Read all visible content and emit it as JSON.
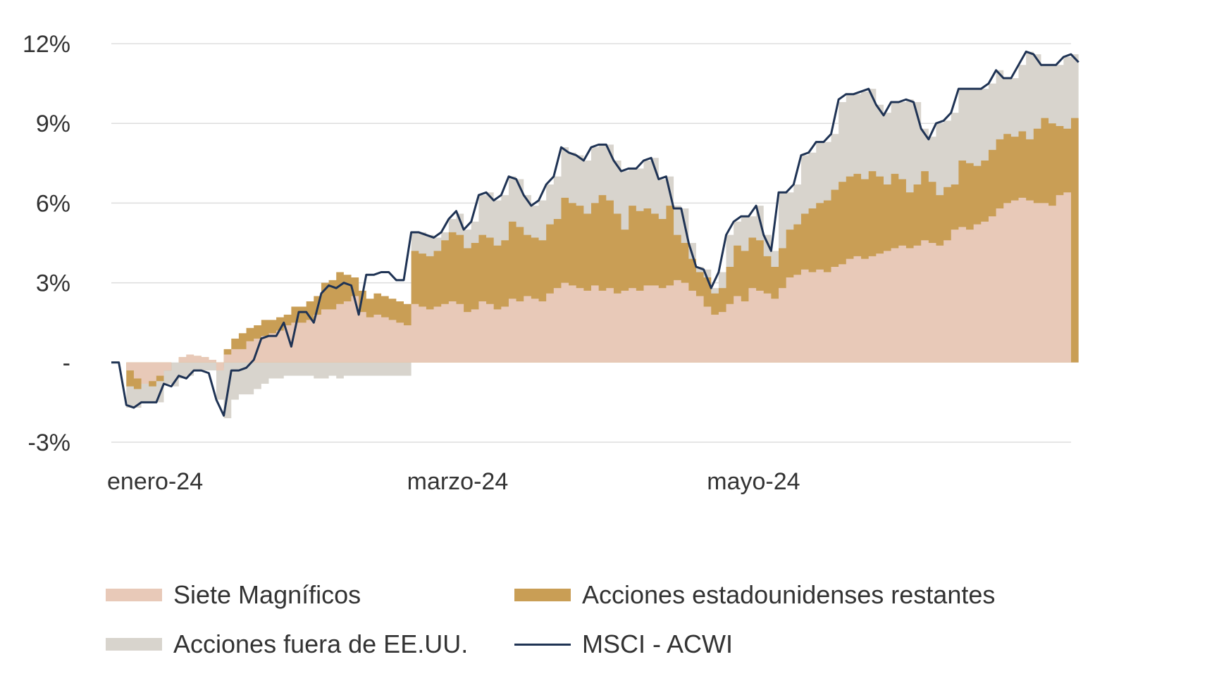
{
  "chart_data": {
    "type": "area",
    "title": "",
    "xlabel": "",
    "ylabel": "",
    "ylim": [
      -3,
      12
    ],
    "y_ticks": [
      {
        "value": 12,
        "label": "12%"
      },
      {
        "value": 9,
        "label": "9%"
      },
      {
        "value": 6,
        "label": "6%"
      },
      {
        "value": 3,
        "label": "3%"
      },
      {
        "value": 0,
        "label": "-"
      },
      {
        "value": -3,
        "label": "-3%"
      }
    ],
    "x_ticks": [
      {
        "index": 0,
        "label": "enero-24"
      },
      {
        "index": 40,
        "label": "marzo-24"
      },
      {
        "index": 80,
        "label": "mayo-24"
      }
    ],
    "grid": true,
    "legend_position": "bottom",
    "series": [
      {
        "name": "Siete Magníficos",
        "type": "stacked-area",
        "color": "#e8c9b8",
        "values": [
          0,
          0,
          -0.3,
          -0.6,
          -0.8,
          -0.7,
          -0.5,
          -0.3,
          0.0,
          0.2,
          0.3,
          0.25,
          0.2,
          0.1,
          -0.3,
          0.3,
          0.5,
          0.5,
          0.8,
          0.9,
          1.0,
          1.1,
          1.2,
          1.4,
          1.5,
          1.5,
          1.6,
          1.8,
          2.0,
          2.0,
          2.2,
          2.3,
          2.5,
          1.9,
          1.7,
          1.8,
          1.7,
          1.6,
          1.5,
          1.4,
          2.2,
          2.1,
          2.0,
          2.1,
          2.2,
          2.3,
          2.2,
          1.9,
          2.0,
          2.3,
          2.2,
          2.0,
          2.1,
          2.4,
          2.3,
          2.5,
          2.4,
          2.3,
          2.6,
          2.8,
          3.0,
          2.9,
          2.8,
          2.7,
          2.9,
          2.7,
          2.8,
          2.6,
          2.7,
          2.8,
          2.7,
          2.9,
          2.9,
          2.8,
          2.9,
          3.1,
          3.0,
          2.7,
          2.5,
          2.1,
          1.8,
          1.9,
          2.2,
          2.5,
          2.3,
          2.8,
          2.7,
          2.6,
          2.4,
          2.8,
          3.2,
          3.3,
          3.5,
          3.4,
          3.5,
          3.4,
          3.6,
          3.7,
          3.9,
          4.0,
          3.9,
          4.0,
          4.1,
          4.2,
          4.3,
          4.4,
          4.3,
          4.4,
          4.6,
          4.5,
          4.4,
          4.6,
          5.0,
          5.1,
          5.0,
          5.2,
          5.3,
          5.5,
          5.8,
          6.0,
          6.1,
          6.2,
          6.1,
          6.0,
          6.0,
          5.9,
          6.3,
          6.4,
          6.2
        ]
      },
      {
        "name": "Acciones estadounidenses restantes",
        "type": "stacked-area",
        "color": "#c99e55",
        "values": [
          0,
          0,
          -0.9,
          -1.0,
          -0.8,
          -0.9,
          -0.7,
          -0.3,
          0.0,
          0.2,
          0.3,
          0.25,
          0.2,
          0.1,
          -0.2,
          0.5,
          0.9,
          1.1,
          1.3,
          1.4,
          1.6,
          1.6,
          1.7,
          1.8,
          2.1,
          2.1,
          2.3,
          2.5,
          3.0,
          3.1,
          3.4,
          3.3,
          3.2,
          2.7,
          2.4,
          2.6,
          2.5,
          2.4,
          2.3,
          2.2,
          4.2,
          4.1,
          4.0,
          4.2,
          4.6,
          4.9,
          4.8,
          4.3,
          4.5,
          4.8,
          4.7,
          4.4,
          4.6,
          5.3,
          5.1,
          4.8,
          4.7,
          4.6,
          5.2,
          5.4,
          6.2,
          6.0,
          5.9,
          5.6,
          6.0,
          6.3,
          6.1,
          5.6,
          5.0,
          5.9,
          5.7,
          5.8,
          5.6,
          5.4,
          5.9,
          4.8,
          4.5,
          3.9,
          3.4,
          3.2,
          2.6,
          2.8,
          3.6,
          4.4,
          4.2,
          4.7,
          4.6,
          4.0,
          3.6,
          4.3,
          5.0,
          5.2,
          5.6,
          5.8,
          6.0,
          6.1,
          6.5,
          6.8,
          7.0,
          7.1,
          6.9,
          7.2,
          7.0,
          6.7,
          7.1,
          6.9,
          6.4,
          6.7,
          7.2,
          6.8,
          6.3,
          6.6,
          6.7,
          7.6,
          7.5,
          7.4,
          7.6,
          8.0,
          8.4,
          8.6,
          8.5,
          8.7,
          8.4,
          8.8,
          9.2,
          9.0,
          8.9,
          8.8,
          9.2,
          9.0
        ]
      },
      {
        "name": "Acciones fuera de EE.UU.",
        "type": "stacked-area",
        "color": "#d8d4cd",
        "values": [
          0,
          0,
          -1.7,
          -1.7,
          -1.5,
          -1.5,
          -1.5,
          -0.8,
          -0.9,
          -0.6,
          -0.5,
          -0.3,
          -0.3,
          -0.3,
          -1.4,
          -2.1,
          -1.4,
          -1.2,
          -1.2,
          -1.0,
          -0.8,
          -0.6,
          -0.6,
          -0.5,
          -0.5,
          -0.5,
          -0.5,
          -0.6,
          -0.6,
          -0.5,
          -0.6,
          -0.5,
          -0.5,
          -0.5,
          -0.5,
          -0.5,
          -0.5,
          -0.5,
          -0.5,
          -0.5,
          4.9,
          4.9,
          4.8,
          4.7,
          4.9,
          5.4,
          5.6,
          5.0,
          5.3,
          6.3,
          6.4,
          6.1,
          6.3,
          7.0,
          6.9,
          6.3,
          5.9,
          6.1,
          6.7,
          7.0,
          8.1,
          7.9,
          7.8,
          7.6,
          8.1,
          8.2,
          8.2,
          7.6,
          7.2,
          7.3,
          7.3,
          7.6,
          7.7,
          6.9,
          7.0,
          5.9,
          5.8,
          4.5,
          3.6,
          3.5,
          2.8,
          3.4,
          4.8,
          5.3,
          5.5,
          5.5,
          5.9,
          4.8,
          4.2,
          6.4,
          6.4,
          6.7,
          7.8,
          7.9,
          8.3,
          8.3,
          8.6,
          9.8,
          10.1,
          10.1,
          10.2,
          10.3,
          9.7,
          9.4,
          9.8,
          9.8,
          9.9,
          9.8,
          8.8,
          8.5,
          9.0,
          9.1,
          9.4,
          10.3,
          10.3,
          10.3,
          10.3,
          10.5,
          11.0,
          10.7,
          10.7,
          11.2,
          11.7,
          11.6,
          11.2,
          11.2,
          11.2,
          11.5,
          11.6,
          11.3
        ]
      },
      {
        "name": "MSCI - ACWI",
        "type": "line",
        "color": "#1f3354",
        "values": [
          0,
          0,
          -1.6,
          -1.7,
          -1.5,
          -1.5,
          -1.5,
          -0.8,
          -0.9,
          -0.5,
          -0.6,
          -0.3,
          -0.3,
          -0.4,
          -1.4,
          -2.0,
          -0.3,
          -0.3,
          -0.2,
          0.1,
          0.9,
          1.0,
          1.0,
          1.5,
          0.6,
          1.9,
          1.9,
          1.5,
          2.6,
          2.9,
          2.8,
          3.0,
          2.9,
          1.8,
          3.3,
          3.3,
          3.4,
          3.4,
          3.1,
          3.1,
          4.9,
          4.9,
          4.8,
          4.7,
          4.9,
          5.4,
          5.7,
          5.0,
          5.3,
          6.3,
          6.4,
          6.1,
          6.3,
          7.0,
          6.9,
          6.3,
          5.9,
          6.1,
          6.7,
          7.0,
          8.1,
          7.9,
          7.8,
          7.6,
          8.1,
          8.2,
          8.2,
          7.6,
          7.2,
          7.3,
          7.3,
          7.6,
          7.7,
          6.9,
          7.0,
          5.8,
          5.8,
          4.5,
          3.6,
          3.5,
          2.8,
          3.4,
          4.8,
          5.3,
          5.5,
          5.5,
          5.9,
          4.8,
          4.2,
          6.4,
          6.4,
          6.7,
          7.8,
          7.9,
          8.3,
          8.3,
          8.6,
          9.9,
          10.1,
          10.1,
          10.2,
          10.3,
          9.7,
          9.3,
          9.8,
          9.8,
          9.9,
          9.8,
          8.8,
          8.4,
          9.0,
          9.1,
          9.4,
          10.3,
          10.3,
          10.3,
          10.3,
          10.5,
          11.0,
          10.7,
          10.7,
          11.2,
          11.7,
          11.6,
          11.2,
          11.2,
          11.2,
          11.5,
          11.6,
          11.3
        ]
      }
    ]
  },
  "legend": {
    "items": [
      {
        "label": "Siete Magníficos",
        "color": "#e8c9b8",
        "kind": "area"
      },
      {
        "label": "Acciones estadounidenses restantes",
        "color": "#c99e55",
        "kind": "area"
      },
      {
        "label": "Acciones fuera de EE.UU.",
        "color": "#d8d4cd",
        "kind": "area"
      },
      {
        "label": "MSCI - ACWI",
        "color": "#1f3354",
        "kind": "line"
      }
    ]
  },
  "colors": {
    "negative_tick": "#8a2b52",
    "tick": "#333333",
    "grid": "#dddddd"
  }
}
